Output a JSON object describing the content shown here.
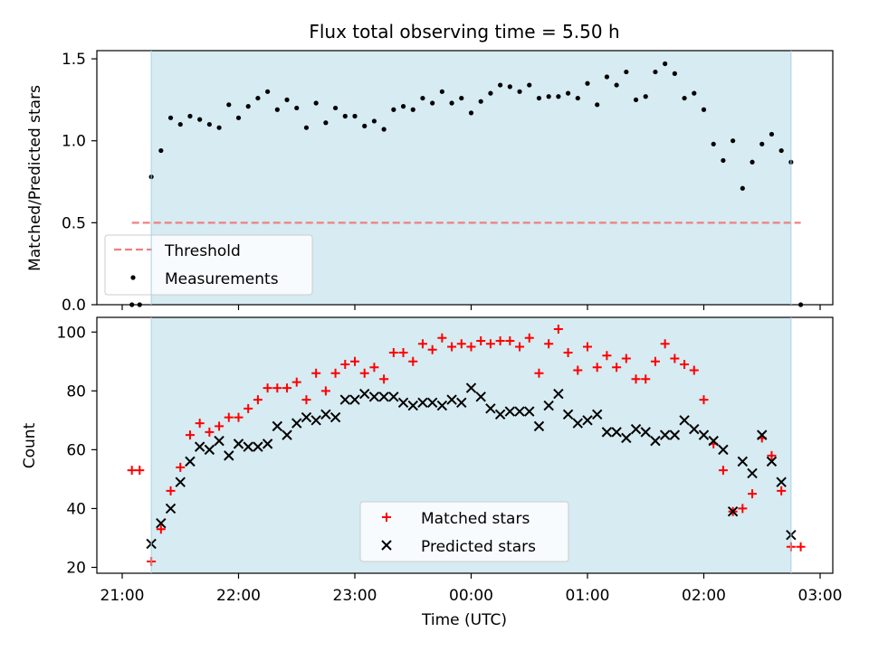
{
  "chart_data": {
    "title": "Flux total observing time = 5.50 h",
    "xlabel": "Time (UTC)",
    "x_ticks": [
      "21:00",
      "22:00",
      "23:00",
      "00:00",
      "01:00",
      "02:00",
      "03:00"
    ],
    "observing_window": {
      "start": "21:15",
      "end": "02:45"
    },
    "top_panel": {
      "type": "scatter",
      "ylabel": "Matched/Predicted stars",
      "ylim": [
        0,
        1.55
      ],
      "y_ticks": [
        "0.0",
        "0.5",
        "1.0",
        "1.5"
      ],
      "threshold": {
        "name": "Threshold",
        "value": 0.5,
        "color": "#f08080",
        "x_range": [
          "21:05",
          "02:50"
        ]
      },
      "legend": [
        "Threshold",
        "Measurements"
      ],
      "legend_position": "lower-left",
      "series": [
        {
          "name": "Measurements",
          "color": "#000000",
          "points": [
            [
              "21:05",
              0.0
            ],
            [
              "21:09",
              0.0
            ],
            [
              "21:15",
              0.78
            ],
            [
              "21:20",
              0.94
            ],
            [
              "21:25",
              1.14
            ],
            [
              "21:30",
              1.1
            ],
            [
              "21:35",
              1.15
            ],
            [
              "21:40",
              1.13
            ],
            [
              "21:45",
              1.1
            ],
            [
              "21:50",
              1.08
            ],
            [
              "21:55",
              1.22
            ],
            [
              "22:00",
              1.14
            ],
            [
              "22:05",
              1.21
            ],
            [
              "22:10",
              1.26
            ],
            [
              "22:15",
              1.3
            ],
            [
              "22:20",
              1.19
            ],
            [
              "22:25",
              1.25
            ],
            [
              "22:30",
              1.2
            ],
            [
              "22:35",
              1.08
            ],
            [
              "22:40",
              1.23
            ],
            [
              "22:45",
              1.11
            ],
            [
              "22:50",
              1.2
            ],
            [
              "22:55",
              1.15
            ],
            [
              "23:00",
              1.15
            ],
            [
              "23:05",
              1.09
            ],
            [
              "23:10",
              1.12
            ],
            [
              "23:15",
              1.07
            ],
            [
              "23:20",
              1.19
            ],
            [
              "23:25",
              1.21
            ],
            [
              "23:30",
              1.19
            ],
            [
              "23:35",
              1.26
            ],
            [
              "23:40",
              1.23
            ],
            [
              "23:45",
              1.3
            ],
            [
              "23:50",
              1.23
            ],
            [
              "23:55",
              1.26
            ],
            [
              "00:00",
              1.17
            ],
            [
              "00:05",
              1.24
            ],
            [
              "00:10",
              1.29
            ],
            [
              "00:15",
              1.34
            ],
            [
              "00:20",
              1.33
            ],
            [
              "00:25",
              1.3
            ],
            [
              "00:30",
              1.34
            ],
            [
              "00:35",
              1.26
            ],
            [
              "00:40",
              1.27
            ],
            [
              "00:45",
              1.27
            ],
            [
              "00:50",
              1.29
            ],
            [
              "00:55",
              1.26
            ],
            [
              "01:00",
              1.35
            ],
            [
              "01:05",
              1.22
            ],
            [
              "01:10",
              1.39
            ],
            [
              "01:15",
              1.34
            ],
            [
              "01:20",
              1.42
            ],
            [
              "01:25",
              1.25
            ],
            [
              "01:30",
              1.27
            ],
            [
              "01:35",
              1.42
            ],
            [
              "01:40",
              1.47
            ],
            [
              "01:45",
              1.41
            ],
            [
              "01:50",
              1.26
            ],
            [
              "01:55",
              1.29
            ],
            [
              "02:00",
              1.19
            ],
            [
              "02:05",
              0.98
            ],
            [
              "02:10",
              0.88
            ],
            [
              "02:15",
              1.0
            ],
            [
              "02:20",
              0.71
            ],
            [
              "02:25",
              0.87
            ],
            [
              "02:30",
              0.98
            ],
            [
              "02:35",
              1.04
            ],
            [
              "02:40",
              0.94
            ],
            [
              "02:45",
              0.87
            ],
            [
              "02:50",
              0.0
            ]
          ]
        }
      ]
    },
    "bottom_panel": {
      "type": "scatter",
      "ylabel": "Count",
      "ylim": [
        18,
        105
      ],
      "y_ticks": [
        "20",
        "40",
        "60",
        "80",
        "100"
      ],
      "legend": [
        "Matched stars",
        "Predicted stars"
      ],
      "legend_position": "lower-center",
      "series": [
        {
          "name": "Matched stars",
          "marker": "plus",
          "color": "#ff0000",
          "points": [
            [
              "21:05",
              53
            ],
            [
              "21:09",
              53
            ],
            [
              "21:15",
              22
            ],
            [
              "21:20",
              33
            ],
            [
              "21:25",
              46
            ],
            [
              "21:30",
              54
            ],
            [
              "21:35",
              65
            ],
            [
              "21:40",
              69
            ],
            [
              "21:45",
              66
            ],
            [
              "21:50",
              68
            ],
            [
              "21:55",
              71
            ],
            [
              "22:00",
              71
            ],
            [
              "22:05",
              74
            ],
            [
              "22:10",
              77
            ],
            [
              "22:15",
              81
            ],
            [
              "22:20",
              81
            ],
            [
              "22:25",
              81
            ],
            [
              "22:30",
              83
            ],
            [
              "22:35",
              77
            ],
            [
              "22:40",
              86
            ],
            [
              "22:45",
              80
            ],
            [
              "22:50",
              86
            ],
            [
              "22:55",
              89
            ],
            [
              "23:00",
              90
            ],
            [
              "23:05",
              86
            ],
            [
              "23:10",
              88
            ],
            [
              "23:15",
              84
            ],
            [
              "23:20",
              93
            ],
            [
              "23:25",
              93
            ],
            [
              "23:30",
              90
            ],
            [
              "23:35",
              96
            ],
            [
              "23:40",
              94
            ],
            [
              "23:45",
              98
            ],
            [
              "23:50",
              95
            ],
            [
              "23:55",
              96
            ],
            [
              "00:00",
              95
            ],
            [
              "00:05",
              97
            ],
            [
              "00:10",
              96
            ],
            [
              "00:15",
              97
            ],
            [
              "00:20",
              97
            ],
            [
              "00:25",
              95
            ],
            [
              "00:30",
              98
            ],
            [
              "00:35",
              86
            ],
            [
              "00:40",
              96
            ],
            [
              "00:45",
              101
            ],
            [
              "00:50",
              93
            ],
            [
              "00:55",
              87
            ],
            [
              "01:00",
              95
            ],
            [
              "01:05",
              88
            ],
            [
              "01:10",
              92
            ],
            [
              "01:15",
              88
            ],
            [
              "01:20",
              91
            ],
            [
              "01:25",
              84
            ],
            [
              "01:30",
              84
            ],
            [
              "01:35",
              90
            ],
            [
              "01:40",
              96
            ],
            [
              "01:45",
              91
            ],
            [
              "01:50",
              89
            ],
            [
              "01:55",
              87
            ],
            [
              "02:00",
              77
            ],
            [
              "02:05",
              62
            ],
            [
              "02:10",
              53
            ],
            [
              "02:15",
              39
            ],
            [
              "02:20",
              40
            ],
            [
              "02:25",
              45
            ],
            [
              "02:30",
              64
            ],
            [
              "02:35",
              58
            ],
            [
              "02:40",
              46
            ],
            [
              "02:45",
              27
            ],
            [
              "02:50",
              27
            ]
          ]
        },
        {
          "name": "Predicted stars",
          "marker": "x",
          "color": "#000000",
          "points": [
            [
              "21:15",
              28
            ],
            [
              "21:20",
              35
            ],
            [
              "21:25",
              40
            ],
            [
              "21:30",
              49
            ],
            [
              "21:35",
              56
            ],
            [
              "21:40",
              61
            ],
            [
              "21:45",
              60
            ],
            [
              "21:50",
              63
            ],
            [
              "21:55",
              58
            ],
            [
              "22:00",
              62
            ],
            [
              "22:05",
              61
            ],
            [
              "22:10",
              61
            ],
            [
              "22:15",
              62
            ],
            [
              "22:20",
              68
            ],
            [
              "22:25",
              65
            ],
            [
              "22:30",
              69
            ],
            [
              "22:35",
              71
            ],
            [
              "22:40",
              70
            ],
            [
              "22:45",
              72
            ],
            [
              "22:50",
              71
            ],
            [
              "22:55",
              77
            ],
            [
              "23:00",
              77
            ],
            [
              "23:05",
              79
            ],
            [
              "23:10",
              78
            ],
            [
              "23:15",
              78
            ],
            [
              "23:20",
              78
            ],
            [
              "23:25",
              76
            ],
            [
              "23:30",
              75
            ],
            [
              "23:35",
              76
            ],
            [
              "23:40",
              76
            ],
            [
              "23:45",
              75
            ],
            [
              "23:50",
              77
            ],
            [
              "23:55",
              76
            ],
            [
              "00:00",
              81
            ],
            [
              "00:05",
              78
            ],
            [
              "00:10",
              74
            ],
            [
              "00:15",
              72
            ],
            [
              "00:20",
              73
            ],
            [
              "00:25",
              73
            ],
            [
              "00:30",
              73
            ],
            [
              "00:35",
              68
            ],
            [
              "00:40",
              75
            ],
            [
              "00:45",
              79
            ],
            [
              "00:50",
              72
            ],
            [
              "00:55",
              69
            ],
            [
              "01:00",
              70
            ],
            [
              "01:05",
              72
            ],
            [
              "01:10",
              66
            ],
            [
              "01:15",
              66
            ],
            [
              "01:20",
              64
            ],
            [
              "01:25",
              67
            ],
            [
              "01:30",
              66
            ],
            [
              "01:35",
              63
            ],
            [
              "01:40",
              65
            ],
            [
              "01:45",
              65
            ],
            [
              "01:50",
              70
            ],
            [
              "01:55",
              67
            ],
            [
              "02:00",
              65
            ],
            [
              "02:05",
              63
            ],
            [
              "02:10",
              60
            ],
            [
              "02:15",
              39
            ],
            [
              "02:20",
              56
            ],
            [
              "02:25",
              52
            ],
            [
              "02:30",
              65
            ],
            [
              "02:35",
              56
            ],
            [
              "02:40",
              49
            ],
            [
              "02:45",
              31
            ]
          ]
        }
      ]
    }
  }
}
